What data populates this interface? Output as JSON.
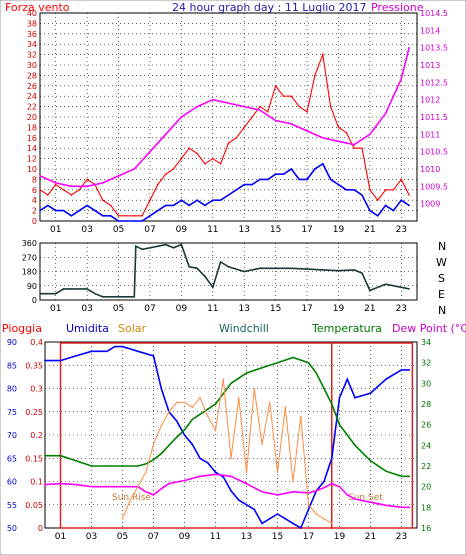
{
  "chart_data": [
    {
      "type": "line",
      "title": "24 hour graph day : 11 Luglio 2017",
      "left_axis_label": "Forza vento",
      "right_axis_label": "Pressione",
      "x_ticks": [
        "01",
        "03",
        "05",
        "07",
        "09",
        "11",
        "13",
        "15",
        "17",
        "19",
        "21",
        "23"
      ],
      "left_axis": {
        "ylim": [
          0,
          40
        ],
        "ticks": [
          "0",
          "2",
          "4",
          "6",
          "8",
          "10",
          "12",
          "14",
          "16",
          "18",
          "20",
          "22",
          "24",
          "26",
          "28",
          "30",
          "32",
          "34",
          "36",
          "38",
          "40"
        ]
      },
      "right_axis": {
        "ylim": [
          1008.5,
          1014.5
        ],
        "ticks": [
          "1009",
          "1009.5",
          "1010",
          "1010.5",
          "1011",
          "1011.5",
          "1012",
          "1012.5",
          "1013",
          "1013.5",
          "1014",
          "1014.5"
        ]
      },
      "colors": {
        "gust": "#ff0000",
        "wind": "#0000ff",
        "pressure": "#ff00ff"
      },
      "series": [
        {
          "key": "gust",
          "color": "#ff0000",
          "x": [
            0,
            0.5,
            1,
            1.5,
            2,
            2.5,
            3,
            3.5,
            4,
            4.5,
            5,
            5.5,
            6,
            6.5,
            7,
            7.5,
            8,
            8.5,
            9,
            9.5,
            10,
            10.5,
            11,
            11.5,
            12,
            12.5,
            13,
            13.5,
            14,
            14.5,
            15,
            15.5,
            16,
            16.5,
            17,
            17.5,
            18,
            18.5,
            19,
            19.5,
            20,
            20.5,
            21,
            21.5,
            22,
            22.5,
            23,
            23.5
          ],
          "values": [
            6,
            5,
            7,
            6,
            5,
            6,
            8,
            7,
            4,
            3,
            1,
            1,
            1,
            1,
            4,
            7,
            9,
            10,
            12,
            14,
            13,
            11,
            12,
            11,
            15,
            16,
            18,
            20,
            22,
            21,
            26,
            24,
            24,
            22,
            21,
            28,
            32,
            22,
            18,
            17,
            14,
            14,
            6,
            4,
            6,
            6,
            8,
            5
          ]
        },
        {
          "key": "wind",
          "color": "#0000ff",
          "x": [
            0,
            0.5,
            1,
            1.5,
            2,
            2.5,
            3,
            3.5,
            4,
            4.5,
            5,
            5.5,
            6,
            6.5,
            7,
            7.5,
            8,
            8.5,
            9,
            9.5,
            10,
            10.5,
            11,
            11.5,
            12,
            12.5,
            13,
            13.5,
            14,
            14.5,
            15,
            15.5,
            16,
            16.5,
            17,
            17.5,
            18,
            18.5,
            19,
            19.5,
            20,
            20.5,
            21,
            21.5,
            22,
            22.5,
            23,
            23.5
          ],
          "values": [
            2,
            3,
            2,
            2,
            1,
            2,
            3,
            2,
            1,
            1,
            0,
            0,
            0,
            0,
            1,
            2,
            3,
            3,
            4,
            3,
            4,
            3,
            4,
            4,
            5,
            6,
            7,
            7,
            8,
            8,
            9,
            9,
            10,
            8,
            8,
            10,
            11,
            8,
            7,
            6,
            6,
            5,
            2,
            1,
            3,
            2,
            4,
            3
          ]
        },
        {
          "key": "pressure",
          "color": "#ff00ff",
          "x": [
            0,
            1,
            2,
            3,
            4,
            5,
            6,
            7,
            8,
            9,
            10,
            11,
            12,
            13,
            14,
            15,
            16,
            17,
            18,
            19,
            20,
            21,
            22,
            23,
            23.5
          ],
          "values": [
            1009.8,
            1009.6,
            1009.5,
            1009.5,
            1009.6,
            1009.8,
            1010.0,
            1010.5,
            1011.0,
            1011.5,
            1011.8,
            1012.0,
            1011.9,
            1011.8,
            1011.7,
            1011.4,
            1011.3,
            1011.1,
            1010.9,
            1010.8,
            1010.7,
            1011.0,
            1011.6,
            1012.6,
            1013.5
          ]
        }
      ]
    },
    {
      "type": "line",
      "right_labels": [
        "N",
        "W",
        "S",
        "E",
        "N"
      ],
      "x_ticks": [
        "01",
        "03",
        "05",
        "07",
        "09",
        "11",
        "13",
        "15",
        "17",
        "19",
        "21",
        "23"
      ],
      "left_axis": {
        "ylim": [
          0,
          360
        ],
        "ticks": [
          "0",
          "90",
          "180",
          "270",
          "360"
        ]
      },
      "series": [
        {
          "key": "direction",
          "color": "#1a3a3a",
          "x": [
            0,
            1,
            1.5,
            2,
            3,
            3.5,
            4,
            5,
            6,
            6.1,
            6.5,
            7,
            8,
            8.5,
            9,
            9.5,
            10,
            10.5,
            11,
            11.5,
            12,
            13,
            14,
            15,
            16,
            17,
            18,
            19,
            20,
            20.5,
            21,
            22,
            23,
            23.5
          ],
          "values": [
            40,
            40,
            70,
            70,
            70,
            40,
            20,
            20,
            20,
            340,
            320,
            330,
            350,
            330,
            350,
            210,
            200,
            150,
            80,
            240,
            210,
            180,
            200,
            200,
            200,
            195,
            190,
            185,
            190,
            170,
            60,
            100,
            80,
            70
          ]
        }
      ]
    },
    {
      "type": "line",
      "labels": {
        "pioggia": "Pioggia",
        "umidita": "Umidita",
        "solar": "Solar",
        "windchill": "Windchill",
        "temperatura": "Temperatura",
        "dew": "Dew Point (°C)"
      },
      "annotations": [
        "Sun Rise",
        "Sun Set"
      ],
      "x_ticks": [
        "01",
        "03",
        "05",
        "07",
        "09",
        "11",
        "13",
        "15",
        "17",
        "19",
        "21",
        "23"
      ],
      "humidity_axis": {
        "ylim": [
          50,
          90
        ],
        "ticks": [
          "50",
          "55",
          "60",
          "65",
          "70",
          "75",
          "80",
          "85",
          "90"
        ]
      },
      "rain_axis": {
        "ylim": [
          0,
          0.4
        ],
        "ticks": [
          "0",
          "0.05",
          "0.1",
          "0.15",
          "0.2",
          "0.25",
          "0.3",
          "0.35",
          "0.4"
        ]
      },
      "temp_axis": {
        "ylim": [
          16,
          34
        ],
        "ticks": [
          "16",
          "18",
          "20",
          "22",
          "24",
          "26",
          "28",
          "30",
          "32",
          "34"
        ]
      },
      "series": [
        {
          "key": "humidity",
          "color": "#0000ff",
          "axis": "humidity",
          "x": [
            0,
            1,
            2,
            3,
            4,
            4.5,
            5,
            6,
            7,
            7.5,
            8,
            8.5,
            9,
            9.5,
            10,
            10.5,
            11,
            11.5,
            12,
            12.5,
            13,
            13.5,
            14,
            14.5,
            15,
            15.5,
            16,
            16.5,
            17,
            17.5,
            18,
            18.5,
            19,
            19.5,
            20,
            21,
            22,
            23,
            23.5
          ],
          "values": [
            86,
            86,
            87,
            88,
            88,
            89,
            89,
            88,
            87,
            80,
            75,
            73,
            70,
            68,
            65,
            64,
            62,
            61,
            58,
            56,
            55,
            54,
            51,
            52,
            53,
            52,
            51,
            50,
            54,
            58,
            60,
            65,
            78,
            82,
            78,
            79,
            82,
            84,
            84
          ]
        },
        {
          "key": "temperatura",
          "color": "#008000",
          "axis": "temp",
          "x": [
            0,
            1,
            2,
            3,
            4,
            5,
            6,
            6.5,
            7,
            7.5,
            8,
            8.5,
            9,
            9.5,
            10,
            10.5,
            11,
            11.5,
            12,
            12.5,
            13,
            14,
            15,
            16,
            17,
            17.5,
            18,
            18.5,
            19,
            19.5,
            20,
            21,
            22,
            23,
            23.5
          ],
          "values": [
            23,
            23,
            22.5,
            22,
            22,
            22,
            22,
            22.2,
            22.6,
            23.2,
            24,
            24.8,
            25.5,
            26.5,
            27,
            27.5,
            28,
            29,
            30,
            30.5,
            31,
            31.5,
            32,
            32.5,
            32,
            31,
            29.5,
            28,
            26,
            25,
            24,
            22.5,
            21.5,
            21,
            21
          ]
        },
        {
          "key": "dewpoint",
          "color": "#ff00ff",
          "axis": "temp",
          "x": [
            0,
            1,
            2,
            3,
            4,
            5,
            6,
            6.5,
            7,
            7.5,
            8,
            9,
            10,
            11,
            12,
            13,
            14,
            15,
            16,
            17,
            17.5,
            18,
            18.5,
            19,
            19.5,
            20,
            21,
            22,
            23,
            23.5
          ],
          "values": [
            20.2,
            20.3,
            20.2,
            20.0,
            20.0,
            20.0,
            20.0,
            19.5,
            19.2,
            19.8,
            20.3,
            20.6,
            21.0,
            21.2,
            21.0,
            20.3,
            19.5,
            19.2,
            19.5,
            19.4,
            19.6,
            19.9,
            20.3,
            20.0,
            19.2,
            18.8,
            18.5,
            18.2,
            18.0,
            18.0
          ]
        },
        {
          "key": "solar",
          "color": "#ff8c40",
          "axis": "rain",
          "x": [
            5,
            5.5,
            6,
            6.5,
            7,
            7.5,
            8,
            8.5,
            9,
            9.5,
            10,
            10.5,
            11,
            11.5,
            12,
            12.5,
            13,
            13.5,
            14,
            14.5,
            15,
            15.5,
            16,
            16.5,
            17,
            17.5,
            18,
            18.5
          ],
          "values": [
            0.02,
            0.06,
            0.09,
            0.12,
            0.18,
            0.22,
            0.25,
            0.27,
            0.27,
            0.26,
            0.28,
            0.24,
            0.21,
            0.32,
            0.15,
            0.28,
            0.12,
            0.3,
            0.18,
            0.27,
            0.12,
            0.26,
            0.1,
            0.24,
            0.05,
            0.03,
            0.02,
            0.01
          ]
        }
      ],
      "rain_highlight": [
        {
          "from": 1,
          "to": 18.5
        },
        {
          "from": 18.5,
          "to": 23.7
        }
      ]
    }
  ]
}
